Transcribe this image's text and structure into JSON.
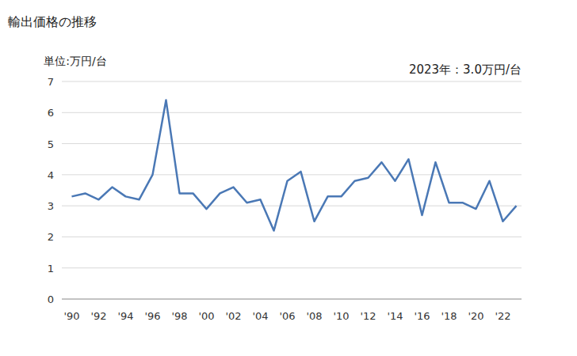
{
  "chart_data": {
    "type": "line",
    "title": "輸出価格の推移",
    "y_label": "単位:万円/台",
    "annotation": "2023年：3.0万円/台",
    "categories": [
      "'90",
      null,
      "'92",
      null,
      "'94",
      null,
      "'96",
      null,
      "'98",
      null,
      "'00",
      null,
      "'02",
      null,
      "'04",
      null,
      "'06",
      null,
      "'08",
      null,
      "'10",
      null,
      "'12",
      null,
      "'14",
      null,
      "'16",
      null,
      "'18",
      null,
      "'20",
      null,
      "'22",
      null
    ],
    "values": [
      3.3,
      3.4,
      3.2,
      3.6,
      3.3,
      3.2,
      4.0,
      6.4,
      3.4,
      3.4,
      2.9,
      3.4,
      3.6,
      3.1,
      3.2,
      2.2,
      3.8,
      4.1,
      2.5,
      3.3,
      3.3,
      3.8,
      3.9,
      4.4,
      3.8,
      4.5,
      2.7,
      4.4,
      3.1,
      3.1,
      2.9,
      3.8,
      2.5,
      3.0
    ],
    "color": "#4a78b5",
    "ylim": [
      0,
      7
    ],
    "yticks": [
      0,
      1,
      2,
      3,
      4,
      5,
      6,
      7
    ],
    "grid": true
  }
}
